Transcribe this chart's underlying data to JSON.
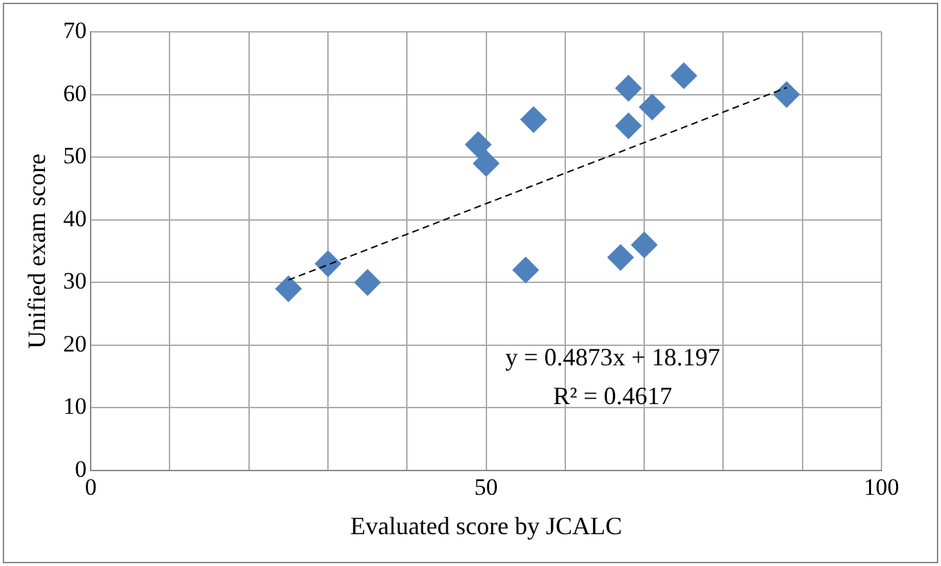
{
  "chart_data": {
    "type": "scatter",
    "xlabel": "Evaluated score by JCALC",
    "ylabel": "Unified exam score",
    "series": [
      {
        "color": "#4f81bd",
        "marker": "diamond",
        "x": [
          25,
          30,
          35,
          49,
          50,
          56,
          55,
          67,
          70,
          68,
          68,
          71,
          75,
          88
        ],
        "values": [
          29,
          33,
          30,
          52,
          49,
          56,
          32,
          34,
          36,
          55,
          61,
          58,
          63,
          60
        ]
      },
      {
        "type": "line",
        "color": "#000000",
        "line_style": "dashed",
        "marker": "none",
        "x": [
          25,
          88
        ],
        "values": [
          30.4,
          61.1
        ]
      }
    ],
    "xlim": [
      0,
      100
    ],
    "xticks": [
      0,
      {
        "value": 10,
        "label": null
      },
      {
        "value": 20,
        "label": null
      },
      {
        "value": 30,
        "label": null
      },
      {
        "value": 40,
        "label": null
      },
      50,
      {
        "value": 60,
        "label": null
      },
      {
        "value": 70,
        "label": null
      },
      {
        "value": 80,
        "label": null
      },
      {
        "value": 90,
        "label": null
      },
      100
    ],
    "ylim": [
      0,
      70
    ],
    "yticks": [
      0,
      10,
      20,
      30,
      40,
      50,
      60,
      70
    ],
    "grid": true,
    "legend": false,
    "annotations": [
      "y = 0.4873x + 18.197",
      "R² = 0.4617"
    ]
  }
}
